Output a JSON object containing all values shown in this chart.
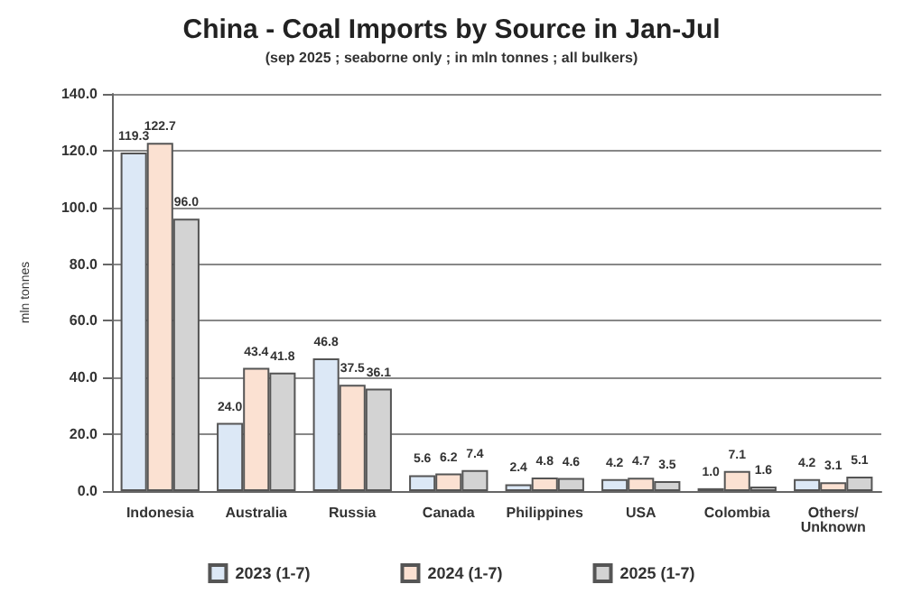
{
  "chart_data": {
    "type": "bar",
    "title": "China - Coal Imports by Source in Jan-Jul",
    "subtitle": "(sep 2025 ; seaborne only ; in mln tonnes ; all bulkers)",
    "ylabel": "mln tonnes",
    "categories": [
      "Indonesia",
      "Australia",
      "Russia",
      "Canada",
      "Philippines",
      "USA",
      "Colombia",
      "Others/\nUnknown"
    ],
    "series": [
      {
        "name": "2023 (1-7)",
        "color": "#dce8f6",
        "values": [
          119.3,
          24.0,
          46.8,
          5.6,
          2.4,
          4.2,
          1.0,
          4.2
        ],
        "value_labels": [
          "119.3",
          "24.0",
          "46.8",
          "5.6",
          "2.4",
          "4.2",
          "1.0",
          "4.2"
        ]
      },
      {
        "name": "2024 (1-7)",
        "color": "#fbe1d2",
        "values": [
          122.7,
          43.4,
          37.5,
          6.2,
          4.8,
          4.7,
          7.1,
          3.1
        ],
        "value_labels": [
          "122.7",
          "43.4",
          "37.5",
          "6.2",
          "4.8",
          "4.7",
          "7.1",
          "3.1"
        ]
      },
      {
        "name": "2025 (1-7)",
        "color": "#d3d3d3",
        "values": [
          96.0,
          41.8,
          36.1,
          7.4,
          4.6,
          3.5,
          1.6,
          5.1
        ],
        "value_labels": [
          "96.0",
          "41.8",
          "36.1",
          "7.4",
          "4.6",
          "3.5",
          "1.6",
          "5.1"
        ]
      }
    ],
    "ylim": [
      0,
      140
    ],
    "yticks": [
      {
        "value": 0,
        "label": "0.0"
      },
      {
        "value": 20,
        "label": "20.0"
      },
      {
        "value": 40,
        "label": "40.0"
      },
      {
        "value": 60,
        "label": "60.0"
      },
      {
        "value": 80,
        "label": "80.0"
      },
      {
        "value": 100,
        "label": "100.0"
      },
      {
        "value": 120,
        "label": "120.0"
      },
      {
        "value": 140,
        "label": "140.0"
      }
    ],
    "grid": "y",
    "legend": "bottom"
  }
}
